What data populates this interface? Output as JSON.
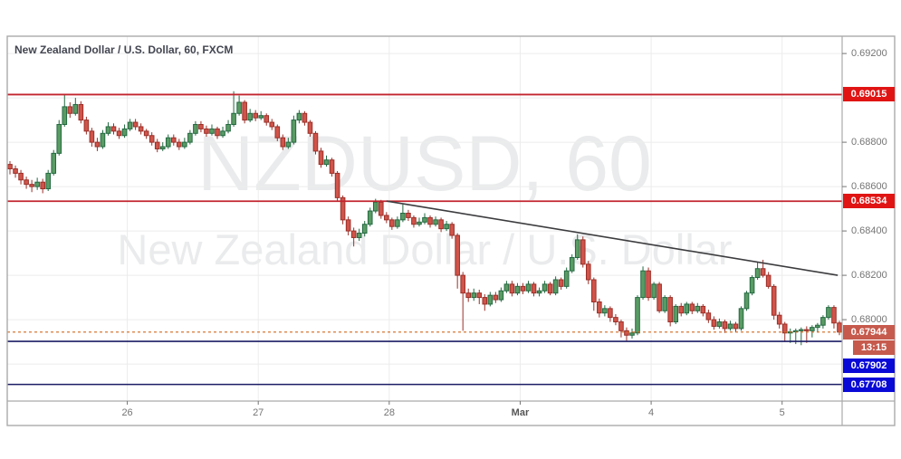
{
  "header": {
    "title": "New Zealand Dollar / U.S. Dollar, 60, FXCM"
  },
  "watermark": {
    "line1": "NZDUSD, 60",
    "line2": "New Zealand Dollar / U.S. Dollar"
  },
  "colors": {
    "up_fill": "#5a9b64",
    "up_border": "#236941",
    "down_fill": "#d0544a",
    "down_border": "#9a2f28",
    "grid": "#ececec",
    "frame": "#aaaaaa",
    "axis_text": "#757575",
    "resistance_line": "#c2242e",
    "resistance_badge": "#e11414",
    "support_line": "#1b1b66",
    "support_badge": "#0a0ad7",
    "last_price_line": "#d2691e",
    "last_price_badge": "#c65a4d",
    "trendline": "#3c3c3f"
  },
  "y_axis": {
    "ticks": [
      {
        "price": 0.692,
        "label": "0.69200"
      },
      {
        "price": 0.688,
        "label": "0.68800"
      },
      {
        "price": 0.686,
        "label": "0.68600"
      },
      {
        "price": 0.684,
        "label": "0.68400"
      },
      {
        "price": 0.682,
        "label": "0.68200"
      },
      {
        "price": 0.68,
        "label": "0.68000"
      }
    ],
    "grid_prices": [
      0.692,
      0.69,
      0.688,
      0.686,
      0.684,
      0.682,
      0.68,
      0.678
    ]
  },
  "x_axis": {
    "labels": [
      {
        "label": "26",
        "bar": 22,
        "bold": false
      },
      {
        "label": "27",
        "bar": 46,
        "bold": false
      },
      {
        "label": "28",
        "bar": 70,
        "bold": false
      },
      {
        "label": "Mar",
        "bar": 94,
        "bold": true
      },
      {
        "label": "4",
        "bar": 118,
        "bold": false
      },
      {
        "label": "5",
        "bar": 142,
        "bold": false
      }
    ]
  },
  "levels": [
    {
      "price": 0.69015,
      "label": "0.69015",
      "type": "resistance",
      "badge_offset": 0
    },
    {
      "price": 0.68534,
      "label": "0.68534",
      "type": "resistance",
      "badge_offset": 0
    },
    {
      "price": 0.67902,
      "label": "0.67902",
      "type": "support",
      "badge_offset": 27
    },
    {
      "price": 0.67708,
      "label": "0.67708",
      "type": "support",
      "badge_offset": 0
    }
  ],
  "last_price": {
    "price": 0.67944,
    "label": "0.67944",
    "countdown": "13:15"
  },
  "trendline": {
    "from_bar": 69.5,
    "from_price": 0.68535,
    "to_bar": 152.2,
    "to_price": 0.682
  },
  "chart_data": {
    "type": "candlestick",
    "symbol": "NZDUSD",
    "timeframe": "60",
    "exchange": "FXCM",
    "title": "New Zealand Dollar / U.S. Dollar, 60, FXCM",
    "ylim": [
      0.67633,
      0.69278
    ],
    "x_range_days": [
      "Feb 25",
      "Mar 5"
    ],
    "bars": [
      [
        0.687,
        0.68715,
        0.68655,
        0.6868
      ],
      [
        0.6868,
        0.68695,
        0.6864,
        0.6866
      ],
      [
        0.6866,
        0.68675,
        0.6861,
        0.6863
      ],
      [
        0.6863,
        0.68645,
        0.6859,
        0.6861
      ],
      [
        0.6861,
        0.6863,
        0.68575,
        0.686
      ],
      [
        0.686,
        0.6864,
        0.68585,
        0.6862
      ],
      [
        0.6862,
        0.68635,
        0.6857,
        0.6859
      ],
      [
        0.6859,
        0.68675,
        0.6858,
        0.6866
      ],
      [
        0.6866,
        0.68765,
        0.6865,
        0.6875
      ],
      [
        0.6875,
        0.689,
        0.6874,
        0.6888
      ],
      [
        0.6888,
        0.69015,
        0.6887,
        0.6896
      ],
      [
        0.6896,
        0.6898,
        0.6891,
        0.6893
      ],
      [
        0.6893,
        0.69,
        0.6892,
        0.6897
      ],
      [
        0.6897,
        0.68985,
        0.68885,
        0.689
      ],
      [
        0.689,
        0.68915,
        0.68835,
        0.6885
      ],
      [
        0.6885,
        0.68865,
        0.6878,
        0.688
      ],
      [
        0.688,
        0.6882,
        0.6876,
        0.6878
      ],
      [
        0.6878,
        0.68855,
        0.6877,
        0.6884
      ],
      [
        0.6884,
        0.6889,
        0.6883,
        0.6887
      ],
      [
        0.6887,
        0.68885,
        0.68835,
        0.6885
      ],
      [
        0.6885,
        0.68865,
        0.68815,
        0.6883
      ],
      [
        0.6883,
        0.6888,
        0.6882,
        0.6886
      ],
      [
        0.6886,
        0.68905,
        0.6885,
        0.6889
      ],
      [
        0.6889,
        0.68905,
        0.68855,
        0.6887
      ],
      [
        0.6887,
        0.68885,
        0.68835,
        0.6885
      ],
      [
        0.6885,
        0.6886,
        0.68815,
        0.6883
      ],
      [
        0.6883,
        0.68845,
        0.68785,
        0.688
      ],
      [
        0.688,
        0.68815,
        0.68755,
        0.6877
      ],
      [
        0.6877,
        0.688,
        0.6876,
        0.6878
      ],
      [
        0.6878,
        0.68835,
        0.6877,
        0.6882
      ],
      [
        0.6882,
        0.68835,
        0.68785,
        0.688
      ],
      [
        0.688,
        0.68815,
        0.68765,
        0.6878
      ],
      [
        0.6878,
        0.6882,
        0.6877,
        0.688
      ],
      [
        0.688,
        0.68855,
        0.6879,
        0.6884
      ],
      [
        0.6884,
        0.68895,
        0.6883,
        0.6888
      ],
      [
        0.6888,
        0.68895,
        0.68845,
        0.6886
      ],
      [
        0.6886,
        0.68875,
        0.68825,
        0.6884
      ],
      [
        0.6884,
        0.6888,
        0.6883,
        0.6886
      ],
      [
        0.6886,
        0.6887,
        0.68815,
        0.6883
      ],
      [
        0.6883,
        0.6887,
        0.6882,
        0.6885
      ],
      [
        0.6885,
        0.689,
        0.6884,
        0.6888
      ],
      [
        0.6888,
        0.6903,
        0.6887,
        0.6893
      ],
      [
        0.6893,
        0.6901,
        0.6892,
        0.6898
      ],
      [
        0.6898,
        0.6899,
        0.68885,
        0.689
      ],
      [
        0.689,
        0.6895,
        0.6889,
        0.6893
      ],
      [
        0.6893,
        0.68945,
        0.68895,
        0.6891
      ],
      [
        0.6891,
        0.6894,
        0.689,
        0.6892
      ],
      [
        0.6892,
        0.6893,
        0.68875,
        0.6889
      ],
      [
        0.6889,
        0.68905,
        0.68855,
        0.6887
      ],
      [
        0.6887,
        0.6888,
        0.68805,
        0.6882
      ],
      [
        0.6882,
        0.68835,
        0.68765,
        0.6878
      ],
      [
        0.6878,
        0.6882,
        0.6877,
        0.688
      ],
      [
        0.688,
        0.6892,
        0.6879,
        0.689
      ],
      [
        0.689,
        0.68945,
        0.68885,
        0.6893
      ],
      [
        0.6893,
        0.6894,
        0.68875,
        0.6889
      ],
      [
        0.6889,
        0.689,
        0.68825,
        0.6884
      ],
      [
        0.6884,
        0.6885,
        0.68745,
        0.6876
      ],
      [
        0.6876,
        0.68775,
        0.68685,
        0.687
      ],
      [
        0.687,
        0.6874,
        0.6869,
        0.6872
      ],
      [
        0.6872,
        0.6873,
        0.68645,
        0.6866
      ],
      [
        0.6866,
        0.6867,
        0.68535,
        0.6855
      ],
      [
        0.6855,
        0.6856,
        0.6843,
        0.6845
      ],
      [
        0.6845,
        0.68465,
        0.6838,
        0.684
      ],
      [
        0.684,
        0.68415,
        0.6833,
        0.6837
      ],
      [
        0.6837,
        0.6841,
        0.68355,
        0.6839
      ],
      [
        0.6839,
        0.68445,
        0.68375,
        0.6843
      ],
      [
        0.6843,
        0.68505,
        0.6842,
        0.6849
      ],
      [
        0.6849,
        0.68545,
        0.6848,
        0.6853
      ],
      [
        0.6853,
        0.6854,
        0.68455,
        0.6847
      ],
      [
        0.6847,
        0.68485,
        0.68435,
        0.6845
      ],
      [
        0.6845,
        0.6846,
        0.68405,
        0.6842
      ],
      [
        0.6842,
        0.68465,
        0.6841,
        0.6845
      ],
      [
        0.6845,
        0.6852,
        0.6844,
        0.6848
      ],
      [
        0.6848,
        0.68495,
        0.68445,
        0.6846
      ],
      [
        0.6846,
        0.6847,
        0.68415,
        0.6843
      ],
      [
        0.6843,
        0.6846,
        0.6842,
        0.6844
      ],
      [
        0.6844,
        0.6848,
        0.6843,
        0.6846
      ],
      [
        0.6846,
        0.6847,
        0.68415,
        0.6843
      ],
      [
        0.6843,
        0.68465,
        0.6842,
        0.6845
      ],
      [
        0.6845,
        0.6846,
        0.68395,
        0.6841
      ],
      [
        0.6841,
        0.68445,
        0.684,
        0.6843
      ],
      [
        0.6843,
        0.6844,
        0.68365,
        0.6838
      ],
      [
        0.6838,
        0.6839,
        0.6814,
        0.682
      ],
      [
        0.682,
        0.68215,
        0.6795,
        0.6812
      ],
      [
        0.6812,
        0.6814,
        0.6808,
        0.681
      ],
      [
        0.681,
        0.6814,
        0.68085,
        0.6812
      ],
      [
        0.6812,
        0.68135,
        0.6807,
        0.681
      ],
      [
        0.681,
        0.68115,
        0.6804,
        0.6807
      ],
      [
        0.6807,
        0.68125,
        0.6806,
        0.6811
      ],
      [
        0.6811,
        0.68125,
        0.68075,
        0.6809
      ],
      [
        0.6809,
        0.68145,
        0.6808,
        0.6813
      ],
      [
        0.6813,
        0.68175,
        0.6812,
        0.6816
      ],
      [
        0.6816,
        0.68175,
        0.68105,
        0.6812
      ],
      [
        0.6812,
        0.68165,
        0.6811,
        0.6815
      ],
      [
        0.6815,
        0.68165,
        0.68115,
        0.6813
      ],
      [
        0.6813,
        0.68175,
        0.6812,
        0.6816
      ],
      [
        0.6816,
        0.6817,
        0.68105,
        0.6812
      ],
      [
        0.6812,
        0.68145,
        0.68105,
        0.6813
      ],
      [
        0.6813,
        0.68175,
        0.6812,
        0.6816
      ],
      [
        0.6816,
        0.6817,
        0.6811,
        0.6812
      ],
      [
        0.6812,
        0.68195,
        0.6811,
        0.6818
      ],
      [
        0.6818,
        0.6819,
        0.68135,
        0.6815
      ],
      [
        0.6815,
        0.68235,
        0.6814,
        0.6822
      ],
      [
        0.6822,
        0.68295,
        0.6821,
        0.6828
      ],
      [
        0.6828,
        0.68385,
        0.6827,
        0.6836
      ],
      [
        0.6836,
        0.68375,
        0.68235,
        0.6825
      ],
      [
        0.6825,
        0.68265,
        0.6816,
        0.6818
      ],
      [
        0.6818,
        0.6819,
        0.6804,
        0.6808
      ],
      [
        0.6808,
        0.68095,
        0.6801,
        0.6803
      ],
      [
        0.6803,
        0.68065,
        0.68015,
        0.6805
      ],
      [
        0.6805,
        0.6806,
        0.6799,
        0.6801
      ],
      [
        0.6801,
        0.68025,
        0.67975,
        0.6799
      ],
      [
        0.6799,
        0.68,
        0.6792,
        0.6795
      ],
      [
        0.6795,
        0.67965,
        0.67905,
        0.6793
      ],
      [
        0.6793,
        0.6796,
        0.67915,
        0.6794
      ],
      [
        0.6794,
        0.6811,
        0.6793,
        0.681
      ],
      [
        0.681,
        0.6824,
        0.6809,
        0.6822
      ],
      [
        0.6822,
        0.68235,
        0.68085,
        0.681
      ],
      [
        0.681,
        0.6817,
        0.6809,
        0.6816
      ],
      [
        0.6816,
        0.6817,
        0.6803,
        0.6804
      ],
      [
        0.6804,
        0.6811,
        0.6803,
        0.681
      ],
      [
        0.681,
        0.6811,
        0.6797,
        0.6799
      ],
      [
        0.6799,
        0.6807,
        0.6798,
        0.6806
      ],
      [
        0.6806,
        0.68075,
        0.68015,
        0.6803
      ],
      [
        0.6803,
        0.6808,
        0.6802,
        0.6807
      ],
      [
        0.6807,
        0.6808,
        0.68025,
        0.6804
      ],
      [
        0.6804,
        0.68075,
        0.6803,
        0.6806
      ],
      [
        0.6806,
        0.6807,
        0.68015,
        0.6803
      ],
      [
        0.6803,
        0.68045,
        0.67985,
        0.68
      ],
      [
        0.68,
        0.68015,
        0.67955,
        0.6797
      ],
      [
        0.6797,
        0.68005,
        0.6796,
        0.6799
      ],
      [
        0.6799,
        0.68,
        0.6794,
        0.6796
      ],
      [
        0.6796,
        0.67995,
        0.6795,
        0.6798
      ],
      [
        0.6798,
        0.6799,
        0.67945,
        0.6796
      ],
      [
        0.6796,
        0.6806,
        0.6795,
        0.6805
      ],
      [
        0.6805,
        0.6813,
        0.6804,
        0.6812
      ],
      [
        0.6812,
        0.682,
        0.6811,
        0.6819
      ],
      [
        0.6819,
        0.6826,
        0.6818,
        0.6823
      ],
      [
        0.6823,
        0.6827,
        0.6819,
        0.682
      ],
      [
        0.682,
        0.68215,
        0.6814,
        0.6815
      ],
      [
        0.6815,
        0.6816,
        0.68,
        0.6802
      ],
      [
        0.6802,
        0.68035,
        0.6796,
        0.6798
      ],
      [
        0.6798,
        0.6799,
        0.679,
        0.6794
      ],
      [
        0.6794,
        0.6796,
        0.67895,
        0.67945
      ],
      [
        0.67945,
        0.6796,
        0.6789,
        0.6795
      ],
      [
        0.6795,
        0.67965,
        0.67885,
        0.67955
      ],
      [
        0.67955,
        0.6797,
        0.67895,
        0.6795
      ],
      [
        0.6795,
        0.67975,
        0.6792,
        0.67965
      ],
      [
        0.67965,
        0.67985,
        0.67945,
        0.67975
      ],
      [
        0.67975,
        0.6802,
        0.6796,
        0.6801
      ],
      [
        0.6801,
        0.68065,
        0.68,
        0.68055
      ],
      [
        0.68055,
        0.68065,
        0.6796,
        0.67985
      ],
      [
        0.67985,
        0.67995,
        0.6793,
        0.67944
      ]
    ]
  }
}
